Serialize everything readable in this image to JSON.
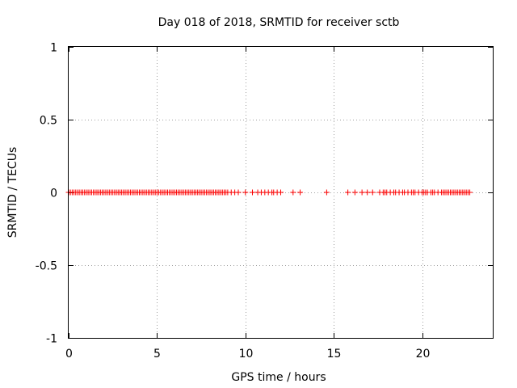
{
  "chart_data": {
    "type": "scatter",
    "title": "Day 018 of 2018, SRMTID for receiver sctb",
    "xlabel": "GPS time / hours",
    "ylabel": "SRMTID / TECUs",
    "xlim": [
      0,
      24
    ],
    "ylim": [
      -1,
      1
    ],
    "xticks": [
      0,
      5,
      10,
      15,
      20
    ],
    "yticks": [
      -1,
      -0.5,
      0,
      0.5,
      1
    ],
    "x_tick_labels": [
      "0",
      "5",
      "10",
      "15",
      "20"
    ],
    "y_tick_labels": [
      "-1",
      "-0.5",
      "0",
      "0.5",
      "1"
    ],
    "grid": true,
    "marker": "+",
    "series": [
      {
        "name": "SRMTID",
        "color": "#ff0000",
        "points": [
          [
            0.0,
            0
          ],
          [
            0.1,
            0
          ],
          [
            0.2,
            0
          ],
          [
            0.3,
            0
          ],
          [
            0.4,
            0
          ],
          [
            0.5,
            0
          ],
          [
            0.6,
            0
          ],
          [
            0.7,
            0
          ],
          [
            0.8,
            0
          ],
          [
            0.9,
            0
          ],
          [
            1.0,
            0
          ],
          [
            1.1,
            0
          ],
          [
            1.2,
            0
          ],
          [
            1.3,
            0
          ],
          [
            1.4,
            0
          ],
          [
            1.5,
            0
          ],
          [
            1.6,
            0
          ],
          [
            1.7,
            0
          ],
          [
            1.8,
            0
          ],
          [
            1.9,
            0
          ],
          [
            2.0,
            0
          ],
          [
            2.1,
            0
          ],
          [
            2.2,
            0
          ],
          [
            2.3,
            0
          ],
          [
            2.4,
            0
          ],
          [
            2.5,
            0
          ],
          [
            2.6,
            0
          ],
          [
            2.7,
            0
          ],
          [
            2.8,
            0
          ],
          [
            2.9,
            0
          ],
          [
            3.0,
            0
          ],
          [
            3.1,
            0
          ],
          [
            3.2,
            0
          ],
          [
            3.3,
            0
          ],
          [
            3.4,
            0
          ],
          [
            3.5,
            0
          ],
          [
            3.6,
            0
          ],
          [
            3.7,
            0
          ],
          [
            3.8,
            0
          ],
          [
            3.9,
            0
          ],
          [
            4.0,
            0
          ],
          [
            4.1,
            0
          ],
          [
            4.2,
            0
          ],
          [
            4.3,
            0
          ],
          [
            4.4,
            0
          ],
          [
            4.5,
            0
          ],
          [
            4.6,
            0
          ],
          [
            4.7,
            0
          ],
          [
            4.8,
            0
          ],
          [
            4.9,
            0
          ],
          [
            5.0,
            0
          ],
          [
            5.1,
            0
          ],
          [
            5.2,
            0
          ],
          [
            5.3,
            0
          ],
          [
            5.4,
            0
          ],
          [
            5.5,
            0
          ],
          [
            5.6,
            0
          ],
          [
            5.7,
            0
          ],
          [
            5.8,
            0
          ],
          [
            5.9,
            0
          ],
          [
            6.0,
            0
          ],
          [
            6.1,
            0
          ],
          [
            6.2,
            0
          ],
          [
            6.3,
            0
          ],
          [
            6.4,
            0
          ],
          [
            6.5,
            0
          ],
          [
            6.6,
            0
          ],
          [
            6.7,
            0
          ],
          [
            6.8,
            0
          ],
          [
            6.9,
            0
          ],
          [
            7.0,
            0
          ],
          [
            7.1,
            0
          ],
          [
            7.2,
            0
          ],
          [
            7.3,
            0
          ],
          [
            7.4,
            0
          ],
          [
            7.5,
            0
          ],
          [
            7.6,
            0
          ],
          [
            7.7,
            0
          ],
          [
            7.8,
            0
          ],
          [
            7.9,
            0
          ],
          [
            8.0,
            0
          ],
          [
            8.1,
            0
          ],
          [
            8.2,
            0
          ],
          [
            8.3,
            0
          ],
          [
            8.4,
            0
          ],
          [
            8.5,
            0
          ],
          [
            8.6,
            0
          ],
          [
            8.7,
            0
          ],
          [
            8.8,
            0
          ],
          [
            8.9,
            0
          ],
          [
            9.0,
            0
          ],
          [
            9.2,
            0
          ],
          [
            9.4,
            0
          ],
          [
            9.6,
            0
          ],
          [
            10.0,
            0
          ],
          [
            10.4,
            0
          ],
          [
            10.7,
            0
          ],
          [
            10.9,
            0
          ],
          [
            11.1,
            0
          ],
          [
            11.3,
            0
          ],
          [
            11.5,
            0
          ],
          [
            11.6,
            0
          ],
          [
            11.8,
            0
          ],
          [
            12.0,
            0
          ],
          [
            12.7,
            0
          ],
          [
            13.1,
            0
          ],
          [
            14.6,
            0
          ],
          [
            15.8,
            0
          ],
          [
            16.2,
            0
          ],
          [
            16.6,
            0
          ],
          [
            16.9,
            0
          ],
          [
            17.2,
            0
          ],
          [
            17.6,
            0
          ],
          [
            17.8,
            0
          ],
          [
            17.9,
            0
          ],
          [
            18.0,
            0
          ],
          [
            18.2,
            0
          ],
          [
            18.4,
            0
          ],
          [
            18.5,
            0
          ],
          [
            18.7,
            0
          ],
          [
            18.9,
            0
          ],
          [
            19.0,
            0
          ],
          [
            19.2,
            0
          ],
          [
            19.4,
            0
          ],
          [
            19.5,
            0
          ],
          [
            19.6,
            0
          ],
          [
            19.8,
            0
          ],
          [
            20.0,
            0
          ],
          [
            20.1,
            0
          ],
          [
            20.2,
            0
          ],
          [
            20.3,
            0
          ],
          [
            20.5,
            0
          ],
          [
            20.6,
            0
          ],
          [
            20.7,
            0
          ],
          [
            20.9,
            0
          ],
          [
            21.1,
            0
          ],
          [
            21.2,
            0
          ],
          [
            21.3,
            0
          ],
          [
            21.4,
            0
          ],
          [
            21.5,
            0
          ],
          [
            21.6,
            0
          ],
          [
            21.7,
            0
          ],
          [
            21.8,
            0
          ],
          [
            21.9,
            0
          ],
          [
            22.0,
            0
          ],
          [
            22.1,
            0
          ],
          [
            22.2,
            0
          ],
          [
            22.3,
            0
          ],
          [
            22.4,
            0
          ],
          [
            22.5,
            0
          ],
          [
            22.6,
            0
          ],
          [
            22.7,
            0
          ]
        ]
      }
    ]
  }
}
